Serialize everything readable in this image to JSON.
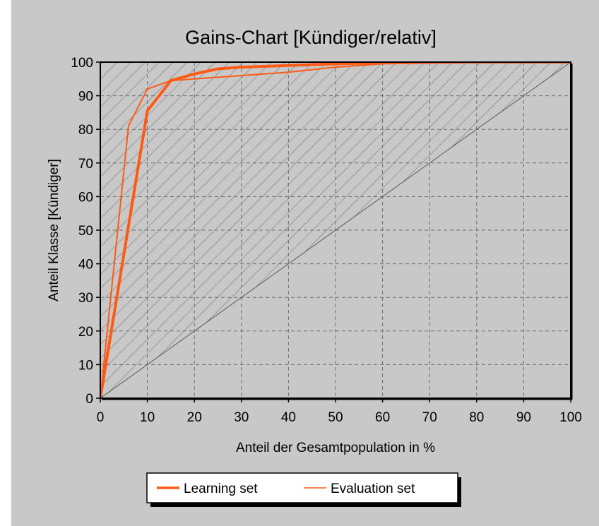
{
  "chart_data": {
    "type": "line",
    "title": "Gains-Chart [Kündiger/relativ]",
    "xlabel": "Anteil der Gesamtpopulation in %",
    "ylabel": "Anteil Klasse [Kündiger]",
    "xlim": [
      0,
      100
    ],
    "ylim": [
      0,
      100
    ],
    "xticks": [
      0,
      10,
      20,
      30,
      40,
      50,
      60,
      70,
      80,
      90,
      100
    ],
    "yticks": [
      0,
      10,
      20,
      30,
      40,
      50,
      60,
      70,
      80,
      90,
      100
    ],
    "grid": true,
    "legend_position": "bottom-center",
    "reference_line": {
      "x": [
        0,
        100
      ],
      "y": [
        0,
        100
      ]
    },
    "ideal_curve": {
      "x": [
        0,
        0,
        100
      ],
      "y": [
        0,
        100,
        100
      ]
    },
    "series": [
      {
        "name": "Learning set",
        "color": "#ff5a14",
        "x": [
          0,
          10,
          15,
          20,
          25,
          30,
          40,
          50,
          60,
          80,
          100
        ],
        "y": [
          0,
          85.5,
          94.5,
          96.5,
          98,
          98.5,
          99,
          99.5,
          99.8,
          100,
          100
        ]
      },
      {
        "name": "Evaluation set",
        "color": "#ff5a14",
        "x": [
          0,
          6,
          10,
          15,
          20,
          30,
          40,
          50,
          60,
          80,
          100
        ],
        "y": [
          0,
          81,
          92,
          94.5,
          95,
          96,
          97,
          98.5,
          99.5,
          100,
          100
        ]
      }
    ]
  }
}
